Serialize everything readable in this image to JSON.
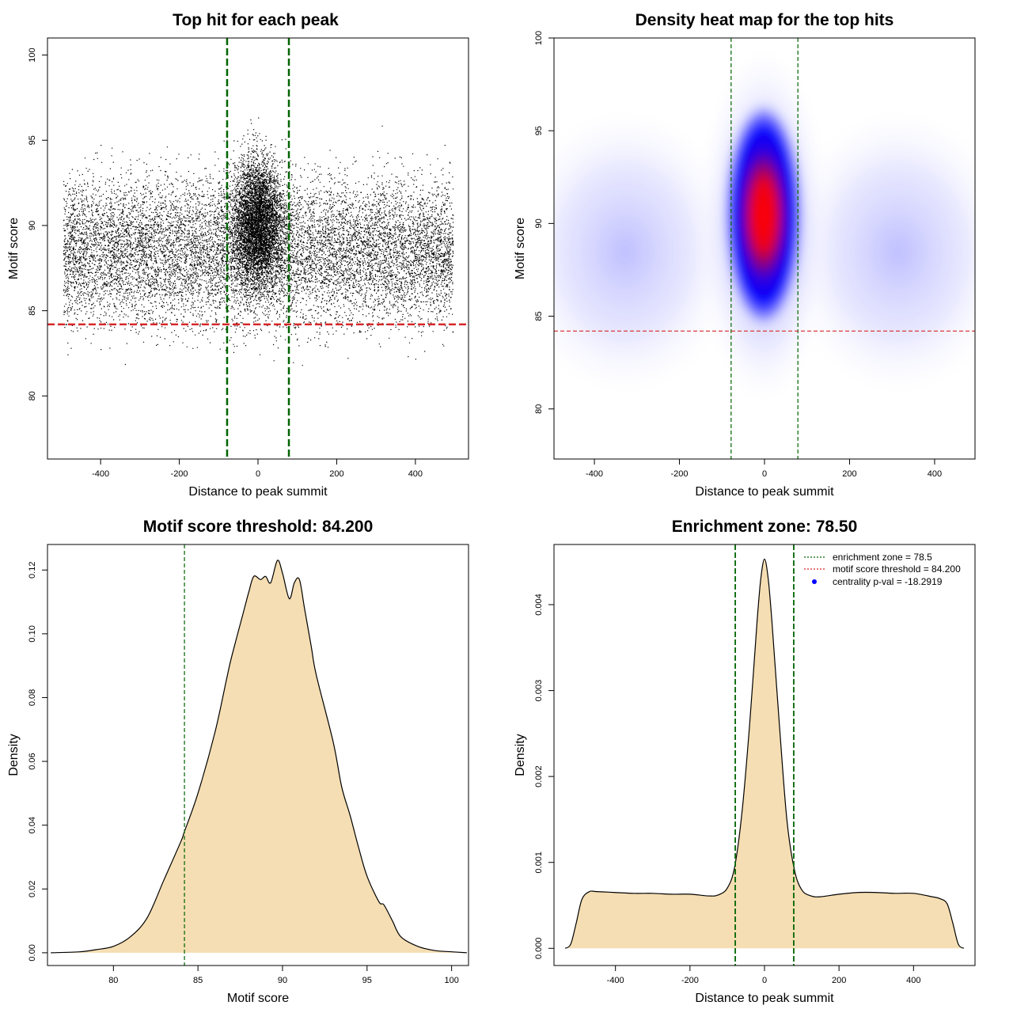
{
  "colors": {
    "threshold": "#d62728",
    "zone": "#006400",
    "fill": "#f5deb3",
    "heat_low": "#ffffff",
    "heat_mid": "#0000ff",
    "heat_high": "#ff0000",
    "pval_dot": "#0000ff"
  },
  "chart_data": [
    {
      "type": "scatter",
      "title": "Top hit for each peak",
      "xlabel": "Distance to peak summit",
      "ylabel": "Motif score",
      "xlim": [
        -535,
        535
      ],
      "ylim": [
        76.3,
        101.0
      ],
      "xticks": [
        -400,
        -200,
        0,
        200,
        400
      ],
      "yticks": [
        80,
        85,
        90,
        95,
        100
      ],
      "grid": false,
      "hlines": [
        84.2
      ],
      "vlines": [
        -78.5,
        78.5
      ],
      "point_cloud": {
        "x_range": [
          -495,
          495
        ],
        "background_score_mean": 88.6,
        "background_score_sd": 3.0,
        "central_score_mean": 90.2,
        "central_score_sd": 2.7,
        "central_sd_distance": 45
      }
    },
    {
      "type": "heatmap",
      "title": "Density heat map for the top hits",
      "xlabel": "Distance to peak summit",
      "ylabel": "Motif score",
      "xlim": [
        -495,
        495
      ],
      "ylim": [
        77.3,
        100.0
      ],
      "xticks": [
        -400,
        -200,
        0,
        200,
        400
      ],
      "yticks": [
        80,
        85,
        90,
        95,
        100
      ],
      "grid": false,
      "hlines": [
        84.2
      ],
      "vlines": [
        -78.5,
        78.5
      ],
      "peak": {
        "x": 0,
        "y": 90.2
      }
    },
    {
      "type": "area",
      "title": "Motif score threshold: 84.200",
      "xlabel": "Motif score",
      "ylabel": "Density",
      "xlim": [
        76.1,
        101.0
      ],
      "ylim": [
        -0.004,
        0.128
      ],
      "xticks": [
        80,
        85,
        90,
        95,
        100
      ],
      "yticks": [
        0.0,
        0.02,
        0.04,
        0.06,
        0.08,
        0.1,
        0.12
      ],
      "ytick_labels": [
        "0.00",
        "0.02",
        "0.04",
        "0.06",
        "0.08",
        "0.10",
        "0.12"
      ],
      "vlines": [
        84.2
      ],
      "x": [
        76.3,
        78,
        79,
        80,
        81,
        82,
        83,
        84,
        84.2,
        85,
        86,
        86.7,
        87,
        87.7,
        88,
        88.3,
        88.7,
        89,
        89.3,
        89.7,
        90,
        90.4,
        90.7,
        91,
        91.3,
        91.7,
        92,
        93,
        93.5,
        94,
        94.5,
        95,
        95.7,
        96,
        96.5,
        97,
        98,
        99,
        100,
        100.9
      ],
      "y": [
        0,
        0.0003,
        0.001,
        0.002,
        0.005,
        0.011,
        0.023,
        0.035,
        0.038,
        0.05,
        0.069,
        0.086,
        0.093,
        0.107,
        0.113,
        0.118,
        0.117,
        0.118,
        0.116,
        0.123,
        0.119,
        0.111,
        0.116,
        0.117,
        0.108,
        0.096,
        0.087,
        0.066,
        0.052,
        0.043,
        0.033,
        0.024,
        0.016,
        0.015,
        0.01,
        0.005,
        0.002,
        0.0007,
        0.0003,
        0
      ]
    },
    {
      "type": "area",
      "title": "Enrichment zone: 78.50",
      "xlabel": "Distance to peak summit",
      "ylabel": "Density",
      "xlim": [
        -565,
        565
      ],
      "ylim": [
        -0.0002,
        0.0047
      ],
      "xticks": [
        -400,
        -200,
        0,
        200,
        400
      ],
      "yticks": [
        0.0,
        0.001,
        0.002,
        0.003,
        0.004
      ],
      "ytick_labels": [
        "0.000",
        "0.001",
        "0.002",
        "0.003",
        "0.004"
      ],
      "vlines": [
        -78.5,
        78.5
      ],
      "x": [
        -535,
        -520,
        -505,
        -490,
        -470,
        -450,
        -400,
        -350,
        -300,
        -250,
        -200,
        -150,
        -125,
        -100,
        -80,
        -60,
        -40,
        -20,
        -10,
        0,
        10,
        20,
        40,
        60,
        80,
        100,
        125,
        150,
        200,
        250,
        300,
        350,
        400,
        450,
        470,
        490,
        505,
        520,
        535
      ],
      "y": [
        0,
        5e-05,
        0.0003,
        0.00057,
        0.00066,
        0.00066,
        0.00065,
        0.00064,
        0.00064,
        0.00063,
        0.00063,
        0.00061,
        0.00062,
        0.0007,
        0.00095,
        0.0016,
        0.0026,
        0.0038,
        0.0043,
        0.00453,
        0.0043,
        0.0038,
        0.0026,
        0.0015,
        0.00092,
        0.00068,
        0.00061,
        0.0006,
        0.00063,
        0.00065,
        0.00065,
        0.00064,
        0.00064,
        0.0006,
        0.00058,
        0.00052,
        0.0003,
        5e-05,
        0
      ],
      "legend": {
        "position": "top-right",
        "entries": [
          {
            "label": "enrichment zone = 78.5",
            "style": "dotted-line",
            "color": "#006400"
          },
          {
            "label": "motif score threshold = 84.200",
            "style": "dotted-line",
            "color": "#d62728"
          },
          {
            "label": "centrality p-val = -18.2919",
            "style": "dot",
            "color": "#0000ff"
          }
        ]
      }
    }
  ]
}
